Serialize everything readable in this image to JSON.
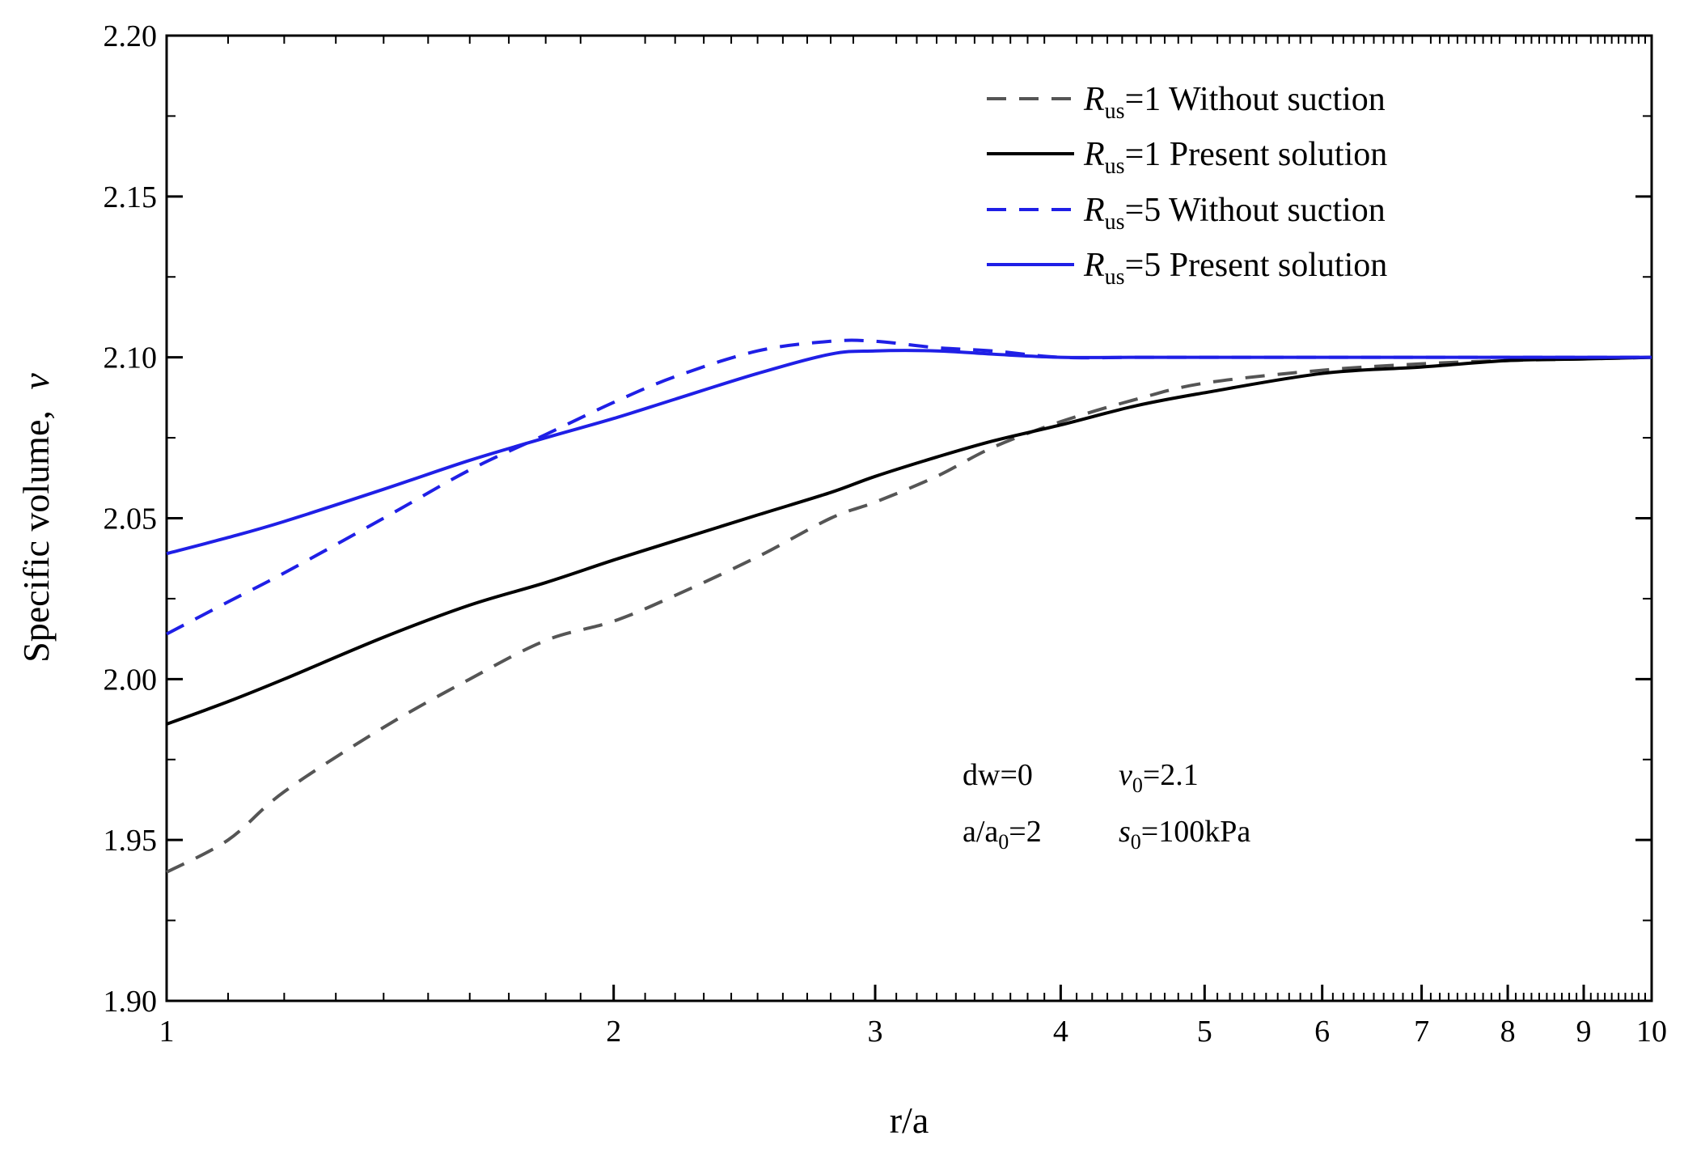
{
  "chart_data": {
    "type": "line",
    "x_scale": "log",
    "xlabel": "r/a",
    "ylabel": "Specific volume,",
    "ylabel_symbol": "v",
    "xlim": [
      1,
      10
    ],
    "ylim": [
      1.9,
      2.2
    ],
    "x_ticks": [
      1,
      2,
      3,
      4,
      5,
      6,
      7,
      8,
      9,
      10
    ],
    "x_tick_labels": [
      "1",
      "2",
      "3",
      "4",
      "5",
      "6",
      "7",
      "8",
      "9",
      "10"
    ],
    "y_ticks": [
      1.9,
      1.95,
      2.0,
      2.05,
      2.1,
      2.15,
      2.2
    ],
    "y_tick_labels": [
      "1.90",
      "1.95",
      "2.00",
      "2.05",
      "2.10",
      "2.15",
      "2.20"
    ],
    "legend_position": "top-right",
    "series": [
      {
        "name": "Rus=1 Without suction",
        "legend_symbol": "R",
        "legend_sub": "us",
        "legend_text": "=1 Without suction",
        "color": "#555555",
        "dash": "dashed",
        "x": [
          1.0,
          1.1,
          1.2,
          1.4,
          1.6,
          1.8,
          2.0,
          2.2,
          2.5,
          2.8,
          3.0,
          3.3,
          3.6,
          4.0,
          4.5,
          5.0,
          6.0,
          7.0,
          8.0,
          9.0,
          10.0
        ],
        "y": [
          1.94,
          1.95,
          1.965,
          1.985,
          2.0,
          2.012,
          2.018,
          2.026,
          2.038,
          2.05,
          2.055,
          2.063,
          2.072,
          2.08,
          2.087,
          2.092,
          2.096,
          2.098,
          2.099,
          2.0995,
          2.1
        ]
      },
      {
        "name": "Rus=1 Present solution",
        "legend_symbol": "R",
        "legend_sub": "us",
        "legend_text": "=1 Present solution",
        "color": "#000000",
        "dash": "solid",
        "x": [
          1.0,
          1.1,
          1.2,
          1.4,
          1.6,
          1.8,
          2.0,
          2.2,
          2.5,
          2.8,
          3.0,
          3.3,
          3.6,
          4.0,
          4.5,
          5.0,
          6.0,
          7.0,
          8.0,
          9.0,
          10.0
        ],
        "y": [
          1.986,
          1.993,
          2.0,
          2.013,
          2.023,
          2.03,
          2.037,
          2.043,
          2.051,
          2.058,
          2.063,
          2.069,
          2.074,
          2.079,
          2.085,
          2.089,
          2.095,
          2.097,
          2.099,
          2.0995,
          2.1
        ]
      },
      {
        "name": "Rus=5 Without suction",
        "legend_symbol": "R",
        "legend_sub": "us",
        "legend_text": "=5 Without suction",
        "color": "#1f1fe6",
        "dash": "dashed",
        "x": [
          1.0,
          1.1,
          1.2,
          1.4,
          1.6,
          1.8,
          2.0,
          2.2,
          2.5,
          2.8,
          3.0,
          3.3,
          3.6,
          4.0,
          4.5,
          5.0,
          6.0,
          7.0,
          8.0,
          9.0,
          10.0
        ],
        "y": [
          2.014,
          2.024,
          2.033,
          2.05,
          2.065,
          2.076,
          2.086,
          2.094,
          2.102,
          2.105,
          2.105,
          2.103,
          2.102,
          2.1,
          2.1,
          2.1,
          2.1,
          2.1,
          2.1,
          2.1,
          2.1
        ]
      },
      {
        "name": "Rus=5 Present solution",
        "legend_symbol": "R",
        "legend_sub": "us",
        "legend_text": "=5 Present solution",
        "color": "#1f1fe6",
        "dash": "solid",
        "x": [
          1.0,
          1.1,
          1.2,
          1.4,
          1.6,
          1.8,
          2.0,
          2.2,
          2.5,
          2.8,
          3.0,
          3.3,
          3.6,
          4.0,
          4.5,
          5.0,
          6.0,
          7.0,
          8.0,
          9.0,
          10.0
        ],
        "y": [
          2.039,
          2.044,
          2.049,
          2.059,
          2.068,
          2.075,
          2.081,
          2.087,
          2.095,
          2.101,
          2.102,
          2.102,
          2.101,
          2.1,
          2.1,
          2.1,
          2.1,
          2.1,
          2.1,
          2.1,
          2.1
        ]
      }
    ],
    "annotations": {
      "dw": "dw=0",
      "a_ratio": "a/a",
      "a_ratio_sub": "0",
      "a_ratio_val": "=2",
      "v0_symbol": "v",
      "v0_sub": "0",
      "v0_val": "=2.1",
      "s0_symbol": "s",
      "s0_sub": "0",
      "s0_val": "=100kPa"
    }
  }
}
